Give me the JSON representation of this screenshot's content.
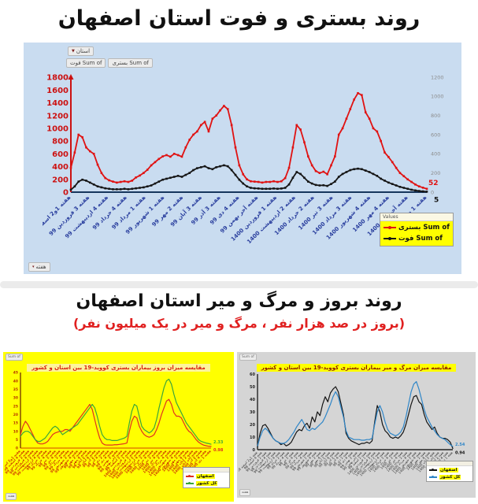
{
  "section1": {
    "title": "روند بستری و فوت استان اصفهان",
    "filter_label": "استان",
    "field_chips": [
      "Sum of بستری",
      "Sum of فوت"
    ],
    "week_chip": "هفته",
    "legend_header": "Values",
    "panel_color": "#c9dcf0"
  },
  "section2": {
    "title": "روند بروز و مرگ و میر استان اصفهان",
    "subtitle": "(بروز در صد هزار نفر ، مرگ و میر در یک میلیون نفر)",
    "left_panel_color": "#ffff00",
    "right_panel_color": "#d5d5d5",
    "sum_chip": "Sum of",
    "week_chip": "هفته"
  },
  "chart_data": [
    {
      "type": "line",
      "title": "روند بستری و فوت استان اصفهان",
      "ylim": [
        0,
        1800
      ],
      "yticks": [
        0,
        200,
        400,
        600,
        800,
        1000,
        1200,
        1400,
        1600,
        1800
      ],
      "ytick_color": "#cc1111",
      "y2lim": [
        0,
        1200
      ],
      "y2ticks": [
        0,
        200,
        400,
        600,
        800,
        1000,
        1200
      ],
      "y2tick_color": "#8c8c8c",
      "xlabel_color": "#2a3f9e",
      "x_labels": [
        "هفته 1و2 اسفند 1398",
        "هفته 3 فروردین 99",
        "هفته 4 اردیبهشت 99",
        "هفته 4 خرداد 99",
        "هفته 1 مرداد 99",
        "هفته 1 شهریور 99",
        "هفته 2 مهر 99",
        "هفته 3 آبان 99",
        "هفته 3 آذر 99",
        "هفته 4 دی 99",
        "هفته آخر بهمن 99",
        "هفته 1 فروردین 1400",
        "هفته 2 اردیبهشت 1400",
        "هفته 2 خرداد 1400",
        "هفته 3 تیر 1400",
        "هفته 3 مرداد 1400",
        "هفته 4 شهریور 1400",
        "هفته 4 مهر 1400",
        "هفته آخر آبان 1400",
        "هفته 1 دی 1400"
      ],
      "series": [
        {
          "name": "Sum of بستری",
          "color": "#e01212",
          "axis": "left",
          "end_label": "52",
          "values": [
            380,
            620,
            900,
            860,
            700,
            640,
            600,
            430,
            300,
            220,
            185,
            165,
            150,
            160,
            170,
            160,
            180,
            230,
            260,
            300,
            350,
            420,
            470,
            520,
            560,
            580,
            555,
            600,
            580,
            555,
            700,
            820,
            900,
            950,
            1050,
            1100,
            950,
            1150,
            1200,
            1280,
            1350,
            1300,
            1050,
            700,
            420,
            280,
            200,
            170,
            165,
            160,
            150,
            160,
            160,
            170,
            160,
            170,
            220,
            380,
            700,
            1050,
            980,
            780,
            560,
            420,
            330,
            300,
            320,
            280,
            420,
            560,
            900,
            1000,
            1150,
            1300,
            1450,
            1550,
            1520,
            1250,
            1150,
            1000,
            950,
            800,
            620,
            550,
            470,
            380,
            300,
            250,
            200,
            160,
            120,
            90,
            70,
            52
          ]
        },
        {
          "name": "Sum of فوت",
          "color": "#151515",
          "axis": "right",
          "end_label": "5",
          "values": [
            25,
            60,
            110,
            130,
            120,
            100,
            80,
            60,
            50,
            40,
            35,
            30,
            30,
            30,
            35,
            30,
            35,
            40,
            45,
            50,
            60,
            70,
            90,
            110,
            130,
            140,
            150,
            160,
            170,
            160,
            180,
            200,
            230,
            250,
            260,
            270,
            250,
            240,
            260,
            270,
            280,
            270,
            230,
            180,
            130,
            90,
            60,
            45,
            40,
            38,
            35,
            35,
            35,
            38,
            35,
            38,
            45,
            80,
            150,
            210,
            190,
            150,
            110,
            90,
            75,
            70,
            72,
            65,
            85,
            110,
            160,
            190,
            210,
            230,
            240,
            245,
            240,
            225,
            210,
            190,
            170,
            140,
            120,
            100,
            85,
            70,
            55,
            45,
            35,
            25,
            18,
            12,
            8,
            5
          ]
        }
      ]
    },
    {
      "type": "line",
      "title": "مقایسه میزان بروز بیماران بستری کووید-19 بین استان و کشور",
      "ylim": [
        0,
        45
      ],
      "yticks": [
        0,
        5,
        10,
        15,
        20,
        25,
        30,
        35,
        40,
        45
      ],
      "ytick_color": "#b33000",
      "xlabel_color": "#cc3300",
      "x_labels": [
        "هفته 1و2 اسفند 1398",
        "هفته 4 اسفند 98",
        "هفته 2 فروردین 99",
        "هفته 4 فروردین 99",
        "هفته 2 اردیبهشت 99",
        "هفته 4 اردیبهشت 99",
        "هفته 2 خرداد 99",
        "هفته 4 خرداد 99",
        "هفته 2 تیر 99",
        "هفته 4 تیر 99",
        "هفته 2 مرداد 99",
        "هفته 4 مرداد 99",
        "هفته 2 شهریور 99",
        "هفته 4 شهریور 99",
        "هفته 2 مهر 99",
        "هفته 4 مهر 99",
        "هفته 2 آبان 99",
        "هفته 4 آبان 99",
        "هفته 2 آذر 99",
        "هفته 4 آذر 99",
        "هفته 2 دی 99",
        "هفته 4 دی 99",
        "هفته 2 بهمن 99",
        "هفته آخر بهمن 99",
        "هفته 2 اسفند 99",
        "هفته 1 فروردین 1400",
        "هفته 3 فروردین 1400",
        "هفته 2 اردیبهشت 1400",
        "هفته 4 اردیبهشت 1400",
        "هفته 2 خرداد 1400",
        "هفته 4 خرداد 1400",
        "هفته 2 تیر 1400",
        "هفته 4 تیر 1400",
        "هفته 2 مرداد 1400",
        "هفته 4 مرداد 1400",
        "هفته 2 شهریور 1400",
        "هفته 4 شهریور 1400",
        "هفته 2 مهر 1400",
        "هفته 4 مهر 1400",
        "هفته 2 آبان 1400",
        "هفته آخر آبان 1400",
        "هفته 2 آذر 1400",
        "هفته 4 آذر 1400",
        "هفته 1 دی 1400"
      ],
      "series": [
        {
          "name": "اصفهان",
          "color": "#e03020",
          "axis": "left",
          "end_label": "0.98",
          "values": [
            8,
            13,
            16,
            14,
            11,
            8,
            5,
            3,
            2.5,
            2.5,
            3,
            4,
            6,
            8,
            9,
            9.5,
            10,
            10,
            11,
            11,
            10,
            12,
            14,
            16,
            18,
            20,
            22,
            24,
            26,
            23,
            17,
            11,
            6,
            3,
            2,
            1.8,
            1.8,
            1.8,
            2,
            2,
            2.2,
            2.4,
            2.6,
            3,
            10,
            16,
            19,
            18,
            13,
            10,
            8,
            7,
            6.5,
            7,
            8,
            11,
            15,
            20,
            24,
            28,
            29,
            26,
            21,
            19,
            19,
            18,
            15,
            12,
            10,
            9,
            7,
            5,
            3.5,
            2.5,
            1.8,
            1.4,
            1.1,
            0.98
          ]
        },
        {
          "name": "کل کشور",
          "color": "#3aa63a",
          "axis": "left",
          "end_label": "2.33",
          "values": [
            7,
            9,
            10,
            10,
            9,
            7,
            5,
            4,
            4,
            5,
            6,
            8,
            10,
            12,
            13,
            12,
            10,
            8,
            9,
            10,
            11,
            12,
            13,
            14,
            16,
            18,
            20,
            22,
            24,
            26,
            24,
            19,
            13,
            8,
            6,
            5,
            5,
            4.5,
            4.5,
            4.5,
            5,
            5.5,
            6,
            7,
            15,
            22,
            26,
            25,
            19,
            13,
            11,
            10,
            9,
            10,
            12,
            17,
            24,
            30,
            36,
            40,
            41,
            38,
            32,
            27,
            24,
            21,
            18,
            15,
            13,
            11,
            9,
            7,
            5,
            4,
            3.5,
            3,
            2.7,
            2.33
          ]
        }
      ]
    },
    {
      "type": "line",
      "title": "مقایسه میزان مرگ و میر بیماران بستری کووید-19 بین استان و کشور",
      "ylim": [
        0,
        60
      ],
      "yticks": [
        0,
        10,
        20,
        30,
        40,
        50,
        60
      ],
      "ytick_color": "#222222",
      "xlabel_color": "#333333",
      "x_labels": [
        "هفته 1و2 اسفند 1398",
        "هفته 4 اسفند 98",
        "هفته 2 فروردین 99",
        "هفته 4 فروردین 99",
        "هفته 2 اردیبهشت 99",
        "هفته 4 اردیبهشت 99",
        "هفته 2 خرداد 99",
        "هفته 4 خرداد 99",
        "هفته 2 تیر 99",
        "هفته 4 تیر 99",
        "هفته 2 مرداد 99",
        "هفته 4 مرداد 99",
        "هفته 2 شهریور 99",
        "هفته 4 شهریور 99",
        "هفته 2 مهر 99",
        "هفته 4 مهر 99",
        "هفته 2 آبان 99",
        "هفته 4 آبان 99",
        "هفته 2 آذر 99",
        "هفته 4 آذر 99",
        "هفته 2 دی 99",
        "هفته 4 دی 99",
        "هفته 2 بهمن 99",
        "هفته آخر بهمن 99",
        "هفته 2 اسفند 99",
        "هفته 1 فروردین 1400",
        "هفته 3 فروردین 1400",
        "هفته 2 اردیبهشت 1400",
        "هفته 4 اردیبهشت 1400",
        "هفته 2 خرداد 1400",
        "هفته 4 خرداد 1400",
        "هفته 2 تیر 1400",
        "هفته 4 تیر 1400",
        "هفته 2 مرداد 1400",
        "هفته 4 مرداد 1400",
        "هفته 2 شهریور 1400",
        "هفته 4 شهریور 1400",
        "هفته 2 مهر 1400",
        "هفته 4 مهر 1400",
        "هفته 2 آبان 1400",
        "هفته آخر آبان 1400",
        "هفته 2 آذر 1400",
        "هفته 4 آذر 1400",
        "هفته 1 دی 1400"
      ],
      "series": [
        {
          "name": "اصفهان",
          "color": "#141414",
          "axis": "left",
          "end_label": "0.94",
          "values": [
            2,
            13,
            19,
            20,
            17,
            13,
            9,
            7,
            6,
            4,
            5,
            3,
            4,
            6,
            10,
            14,
            16,
            15,
            19,
            21,
            17,
            26,
            22,
            30,
            27,
            36,
            42,
            38,
            45,
            48,
            50,
            46,
            37,
            28,
            13,
            9,
            7,
            6,
            5,
            4,
            5,
            5,
            6,
            5,
            7,
            22,
            35,
            30,
            20,
            15,
            13,
            10,
            9,
            10,
            9,
            11,
            14,
            20,
            28,
            36,
            42,
            43,
            38,
            36,
            28,
            22,
            19,
            16,
            18,
            13,
            10,
            9,
            9,
            8,
            6,
            0.94
          ]
        },
        {
          "name": "کل کشور",
          "color": "#2f86c8",
          "axis": "left",
          "end_label": "2.54",
          "values": [
            3,
            10,
            15,
            17,
            15,
            12,
            9,
            7,
            6,
            5,
            5,
            6,
            8,
            11,
            14,
            18,
            21,
            24,
            20,
            16,
            15,
            17,
            16,
            18,
            20,
            22,
            26,
            31,
            36,
            42,
            46,
            42,
            34,
            26,
            15,
            10,
            9,
            8,
            8,
            8,
            7.5,
            7.5,
            8,
            8,
            9,
            20,
            30,
            35,
            30,
            22,
            16,
            13,
            12,
            11,
            12,
            14,
            18,
            26,
            36,
            46,
            52,
            54,
            48,
            40,
            32,
            26,
            22,
            18,
            15,
            12,
            10,
            9,
            8,
            6,
            4,
            2.54
          ]
        }
      ]
    }
  ]
}
